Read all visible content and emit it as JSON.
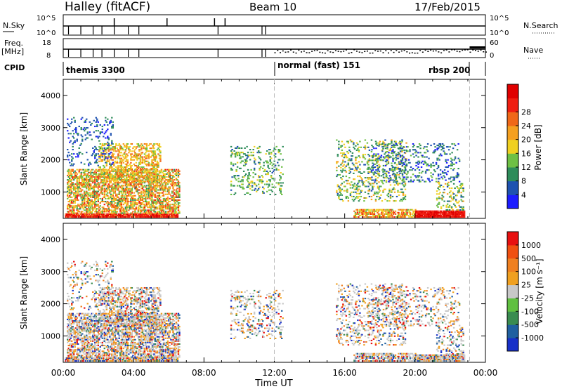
{
  "header": {
    "radar": "Halley (fitACF)",
    "beam": "Beam 10",
    "date": "17/Feb/2015"
  },
  "meta_panels": {
    "nsky_label": "N.Sky",
    "nsky_ticks": [
      "10^5",
      "10^0"
    ],
    "nsearch_label": "N.Search",
    "nsearch_ticks": [
      "10^5",
      "10^0"
    ],
    "freq_label": "Freq.",
    "freq_unit": "[MHz]",
    "freq_ticks": [
      "18",
      "8"
    ],
    "nave_label": "Nave",
    "nave_ticks": [
      "60",
      "0"
    ],
    "cpid_label": "CPID",
    "cpid_modes": [
      {
        "name": "themis 3300",
        "start_hour": 0
      },
      {
        "name": "normal (fast) 151",
        "start_hour": 12
      },
      {
        "name": "rbsp 200",
        "start_hour": 22.6
      }
    ]
  },
  "chart_data": [
    {
      "type": "heatmap",
      "name": "power",
      "ylabel": "Slant Range [km]",
      "xlabel": "",
      "yticks": [
        1000,
        2000,
        3000,
        4000
      ],
      "ylim": [
        180,
        4500
      ],
      "xlim": [
        0,
        24
      ],
      "colorbar": {
        "label": "Power [dB]",
        "ticks": [
          "4",
          "8",
          "12",
          "16",
          "20",
          "24",
          "28"
        ],
        "colors": [
          "#1c1cff",
          "#1e52b0",
          "#2e8c5a",
          "#6ec044",
          "#f0d020",
          "#f5a020",
          "#f06818",
          "#f01e10",
          "#e00000"
        ]
      }
    },
    {
      "type": "heatmap",
      "name": "velocity",
      "ylabel": "Slant Range [km]",
      "xlabel": "Time UT",
      "xticks": [
        "00:00",
        "04:00",
        "08:00",
        "12:00",
        "16:00",
        "20:00",
        "00:00"
      ],
      "yticks": [
        1000,
        2000,
        3000,
        4000
      ],
      "ylim": [
        180,
        4500
      ],
      "xlim": [
        0,
        24
      ],
      "colorbar": {
        "label": "Velocity [m s⁻¹]",
        "ticks": [
          "1000",
          "500",
          "100",
          "25",
          "-25",
          "-100",
          "-500",
          "-1000"
        ],
        "colors": [
          "#1830c8",
          "#2060a0",
          "#3a8c50",
          "#60c040",
          "#c8c8c8",
          "#f0a020",
          "#f08020",
          "#f05010",
          "#e81010"
        ]
      }
    }
  ]
}
